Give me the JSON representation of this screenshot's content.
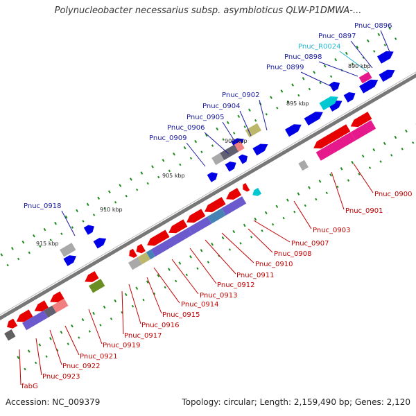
{
  "title": "Polynucleobacter necessarius subsp. asymbioticus QLW-P1DMWA-...",
  "accession": "Accession: NC_009379",
  "summary": "Topology: circular; Length: 2,159,490 bp; Genes: 2,120",
  "ticks": [
    "890 kbp",
    "895 kbp",
    "900 kbp",
    "905 kbp",
    "910 kbp",
    "915 kbp"
  ],
  "labels_upper": [
    "Pnuc_0896",
    "Pnuc_0897",
    "Pnuc_R0024",
    "Pnuc_0898",
    "Pnuc_0899",
    "Pnuc_0902",
    "Pnuc_0904",
    "Pnuc_0905",
    "Pnuc_0906",
    "Pnuc_0909",
    "Pnuc_0918"
  ],
  "labels_lower": [
    "Pnuc_0900",
    "Pnuc_0901",
    "Pnuc_0903",
    "Pnuc_0907",
    "Pnuc_0908",
    "Pnuc_0910",
    "Pnuc_0911",
    "Pnuc_0912",
    "Pnuc_0913",
    "Pnuc_0914",
    "Pnuc_0915",
    "Pnuc_0916",
    "Pnuc_0917",
    "Pnuc_0919",
    "Pnuc_0921",
    "Pnuc_0922",
    "Pnuc_0923",
    "fabG"
  ],
  "colors": {
    "forward_gene": "#0000e6",
    "reverse_gene": "#e60000",
    "rna_gene": "#00c8d2",
    "label_forward": "#1a1aa0",
    "label_reverse": "#c00000",
    "label_rna": "#22b8d0",
    "backbone": "#808080",
    "cog_purple": "#6a5acd",
    "cog_pink": "#e6198c",
    "cog_olive": "#6b8e23",
    "cog_khaki": "#bdb76b",
    "cog_grey": "#a9a9a9",
    "cog_teal": "#4682b4",
    "tick_green": "#1a8a1a"
  }
}
